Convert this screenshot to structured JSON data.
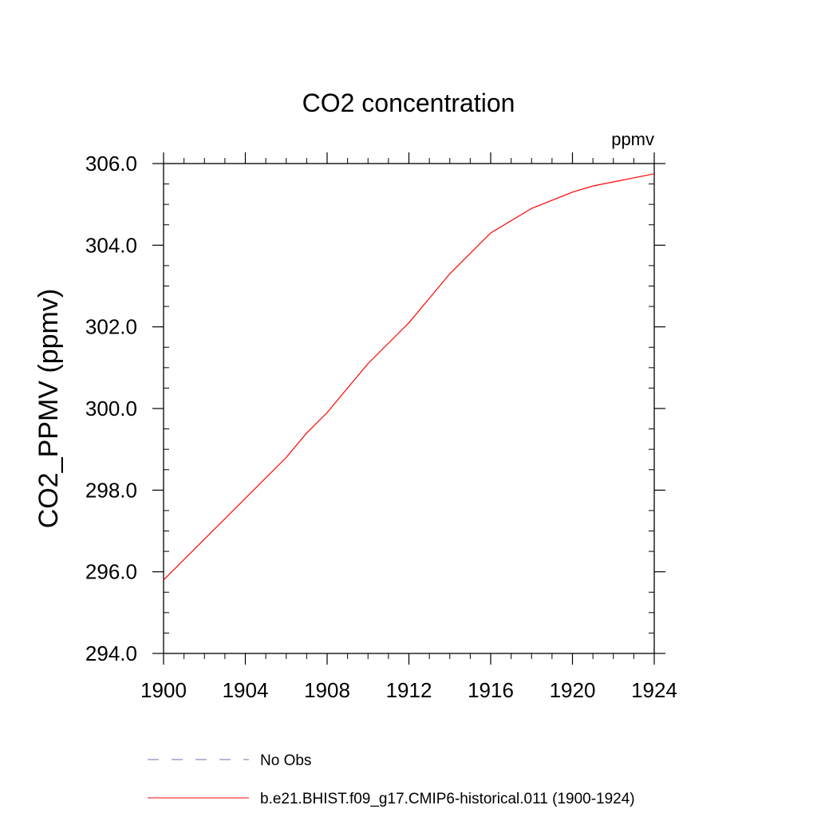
{
  "chart_data": {
    "type": "line",
    "title": "CO2 concentration",
    "units_label": "ppmv",
    "ylabel": "CO2_PPMV  (ppmv)",
    "xlabel": "",
    "xlim": [
      1900,
      1924
    ],
    "ylim": [
      294.0,
      306.0
    ],
    "x_ticks": [
      1900,
      1904,
      1908,
      1912,
      1916,
      1920,
      1924
    ],
    "x_tick_labels": [
      "1900",
      "1904",
      "1908",
      "1912",
      "1916",
      "1920",
      "1924"
    ],
    "y_ticks": [
      294.0,
      296.0,
      298.0,
      300.0,
      302.0,
      304.0,
      306.0
    ],
    "y_tick_labels": [
      "294.0",
      "296.0",
      "298.0",
      "300.0",
      "302.0",
      "304.0",
      "306.0"
    ],
    "grid": false,
    "legend_position": "bottom",
    "series": [
      {
        "name": "b.e21.BHIST.f09_g17.CMIP6-historical.011 (1900-1924)",
        "color": "#ff0000",
        "style": "solid",
        "x": [
          1900,
          1901,
          1902,
          1903,
          1904,
          1905,
          1906,
          1907,
          1908,
          1909,
          1910,
          1911,
          1912,
          1913,
          1914,
          1915,
          1916,
          1917,
          1918,
          1919,
          1920,
          1921,
          1922,
          1923,
          1924
        ],
        "y": [
          295.8,
          296.3,
          296.8,
          297.3,
          297.8,
          298.3,
          298.8,
          299.4,
          299.9,
          300.5,
          301.1,
          301.6,
          302.1,
          302.7,
          303.3,
          303.8,
          304.3,
          304.6,
          304.9,
          305.1,
          305.3,
          305.45,
          305.55,
          305.65,
          305.75
        ]
      }
    ],
    "legend": [
      {
        "label": "No Obs",
        "color": "#7070b0",
        "style": "dashed"
      },
      {
        "label": "b.e21.BHIST.f09_g17.CMIP6-historical.011 (1900-1924)",
        "color": "#ff0000",
        "style": "solid"
      }
    ]
  }
}
